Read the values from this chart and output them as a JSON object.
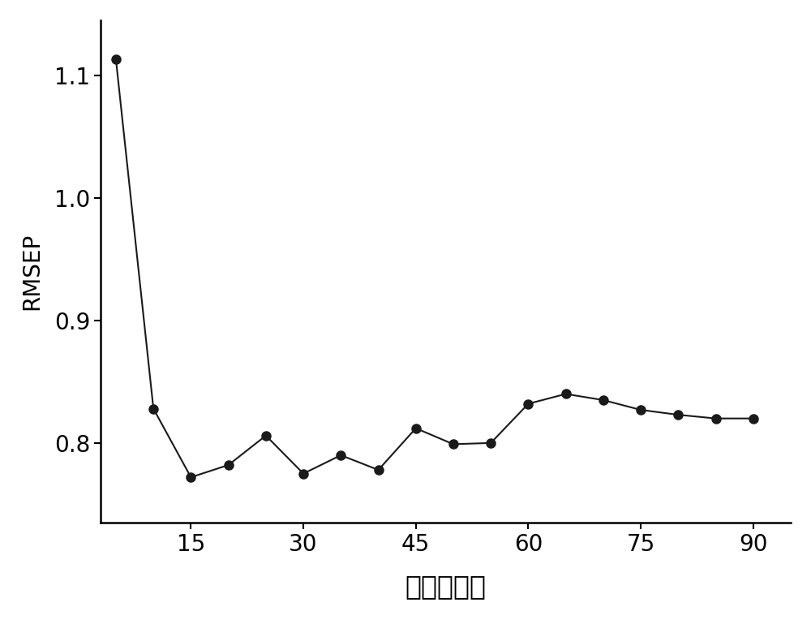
{
  "x": [
    5,
    10,
    15,
    20,
    25,
    30,
    35,
    40,
    45,
    50,
    55,
    60,
    65,
    70,
    75,
    80,
    85,
    90
  ],
  "y": [
    1.113,
    0.828,
    0.772,
    0.782,
    0.806,
    0.775,
    0.79,
    0.778,
    0.812,
    0.799,
    0.8,
    0.832,
    0.84,
    0.835,
    0.827,
    0.823,
    0.82,
    0.82
  ],
  "xlabel": "夹角（度）",
  "ylabel": "RMSEP",
  "xlim": [
    3,
    95
  ],
  "ylim": [
    0.735,
    1.145
  ],
  "xticks": [
    15,
    30,
    45,
    60,
    75,
    90
  ],
  "yticks": [
    0.8,
    0.9,
    1.0,
    1.1
  ],
  "line_color": "#1a1a1a",
  "marker_color": "#1a1a1a",
  "marker_size": 8,
  "line_width": 1.5,
  "background_color": "#ffffff",
  "xlabel_fontsize": 24,
  "ylabel_fontsize": 20,
  "tick_fontsize": 20
}
